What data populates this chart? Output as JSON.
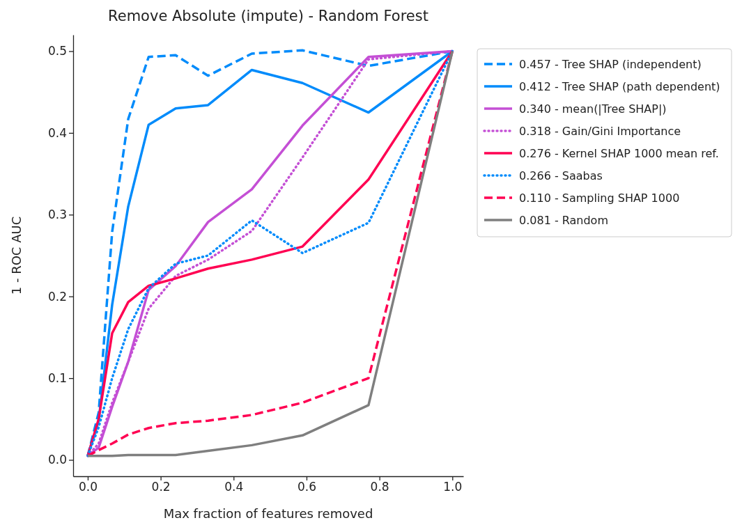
{
  "chart_data": {
    "type": "line",
    "title": "Remove Absolute (impute) - Random Forest",
    "xlabel": "Max fraction of features removed",
    "ylabel": "1 - ROC AUC",
    "x": [
      0,
      0.03,
      0.067,
      0.111,
      0.167,
      0.241,
      0.33,
      0.45,
      0.589,
      0.77,
      1.0
    ],
    "xlim": [
      -0.04,
      1.03
    ],
    "xticks": [
      {
        "value": 0,
        "label": "0.0"
      },
      {
        "value": 0.2,
        "label": "0.2"
      },
      {
        "value": 0.4,
        "label": "0.4"
      },
      {
        "value": 0.6,
        "label": "0.6"
      },
      {
        "value": 0.8,
        "label": "0.8"
      },
      {
        "value": 1,
        "label": "1.0"
      }
    ],
    "ylim": [
      -0.02,
      0.52
    ],
    "yticks": [
      {
        "value": 0,
        "label": "0.0"
      },
      {
        "value": 0.1,
        "label": "0.1"
      },
      {
        "value": 0.2,
        "label": "0.2"
      },
      {
        "value": 0.3,
        "label": "0.3"
      },
      {
        "value": 0.4,
        "label": "0.4"
      },
      {
        "value": 0.5,
        "label": "0.5"
      }
    ],
    "legend": "right",
    "marker": "none",
    "series": [
      {
        "name": "0.457 - Tree SHAP (independent)",
        "color": "#008bfb",
        "line_style": "dashed",
        "values": [
          0.005,
          0.058,
          0.279,
          0.417,
          0.493,
          0.495,
          0.47,
          0.497,
          0.501,
          0.482,
          0.5
        ]
      },
      {
        "name": "0.412 - Tree SHAP (path dependent)",
        "color": "#008bfb",
        "line_style": "solid",
        "values": [
          0.005,
          0.048,
          0.19,
          0.31,
          0.41,
          0.43,
          0.434,
          0.477,
          0.461,
          0.425,
          0.5
        ]
      },
      {
        "name": "0.340 - mean(|Tree SHAP|)",
        "color": "#c44fd5",
        "line_style": "solid",
        "values": [
          0.005,
          0.015,
          0.065,
          0.12,
          0.208,
          0.237,
          0.291,
          0.331,
          0.409,
          0.493,
          0.5
        ]
      },
      {
        "name": "0.318 - Gain/Gini Importance",
        "color": "#c44fd5",
        "line_style": "dotted",
        "values": [
          0.005,
          0.02,
          0.07,
          0.12,
          0.185,
          0.225,
          0.245,
          0.28,
          0.37,
          0.49,
          0.5
        ]
      },
      {
        "name": "0.276 - Kernel SHAP 1000 mean ref.",
        "color": "#ff0052",
        "line_style": "solid",
        "values": [
          0.005,
          0.05,
          0.155,
          0.193,
          0.213,
          0.222,
          0.234,
          0.245,
          0.261,
          0.343,
          0.5
        ]
      },
      {
        "name": "0.266 - Saabas",
        "color": "#008bfb",
        "line_style": "dotted",
        "values": [
          0.005,
          0.04,
          0.1,
          0.16,
          0.21,
          0.24,
          0.25,
          0.293,
          0.253,
          0.29,
          0.5
        ]
      },
      {
        "name": "0.110 - Sampling SHAP 1000",
        "color": "#ff0052",
        "line_style": "dashed",
        "values": [
          0.005,
          0.012,
          0.02,
          0.031,
          0.039,
          0.045,
          0.048,
          0.055,
          0.07,
          0.1,
          0.5
        ]
      },
      {
        "name": "0.081 - Random",
        "color": "#7f7f7f",
        "line_style": "solid",
        "values": [
          0.005,
          0.005,
          0.005,
          0.006,
          0.006,
          0.006,
          0.011,
          0.018,
          0.03,
          0.067,
          0.5
        ]
      }
    ]
  }
}
